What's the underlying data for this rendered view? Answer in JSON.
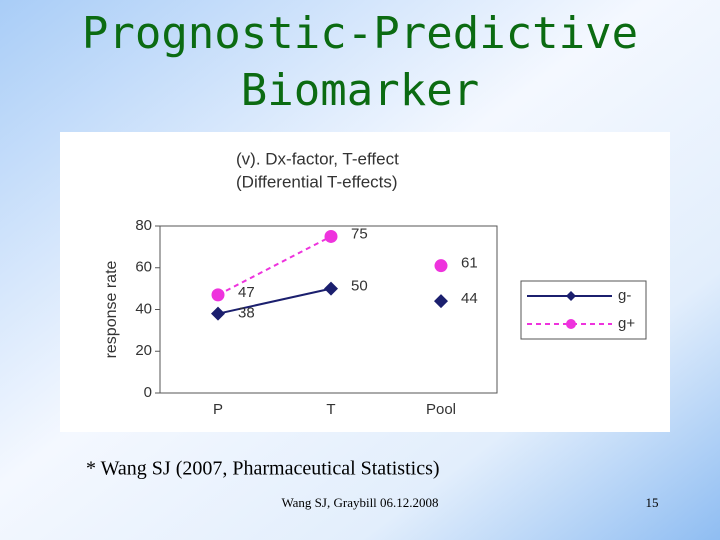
{
  "title": [
    "Prognostic-Predictive",
    "Biomarker"
  ],
  "chart_data": {
    "type": "line",
    "title": "(v). Dx-factor, T-effect",
    "subtitle": "(Differential T-effects)",
    "y_label": "response rate",
    "categories": [
      "P",
      "T",
      "Pool"
    ],
    "line_breaks_before": [
      2
    ],
    "series": [
      {
        "name": "g-",
        "color": "#1b1f6e",
        "marker": "diamond",
        "dashed": false,
        "values": [
          38,
          50,
          44
        ]
      },
      {
        "name": "g+",
        "color": "#ee33dd",
        "marker": "circle",
        "dashed": true,
        "values": [
          47,
          75,
          61
        ]
      }
    ],
    "ylim": [
      0,
      80
    ],
    "yticks": [
      0,
      20,
      40,
      60,
      80
    ],
    "grid": false,
    "legend": "right"
  },
  "footnote": "* Wang SJ (2007, Pharmaceutical Statistics)",
  "footer": "Wang SJ, Graybill 06.12.2008",
  "page_number": "15"
}
